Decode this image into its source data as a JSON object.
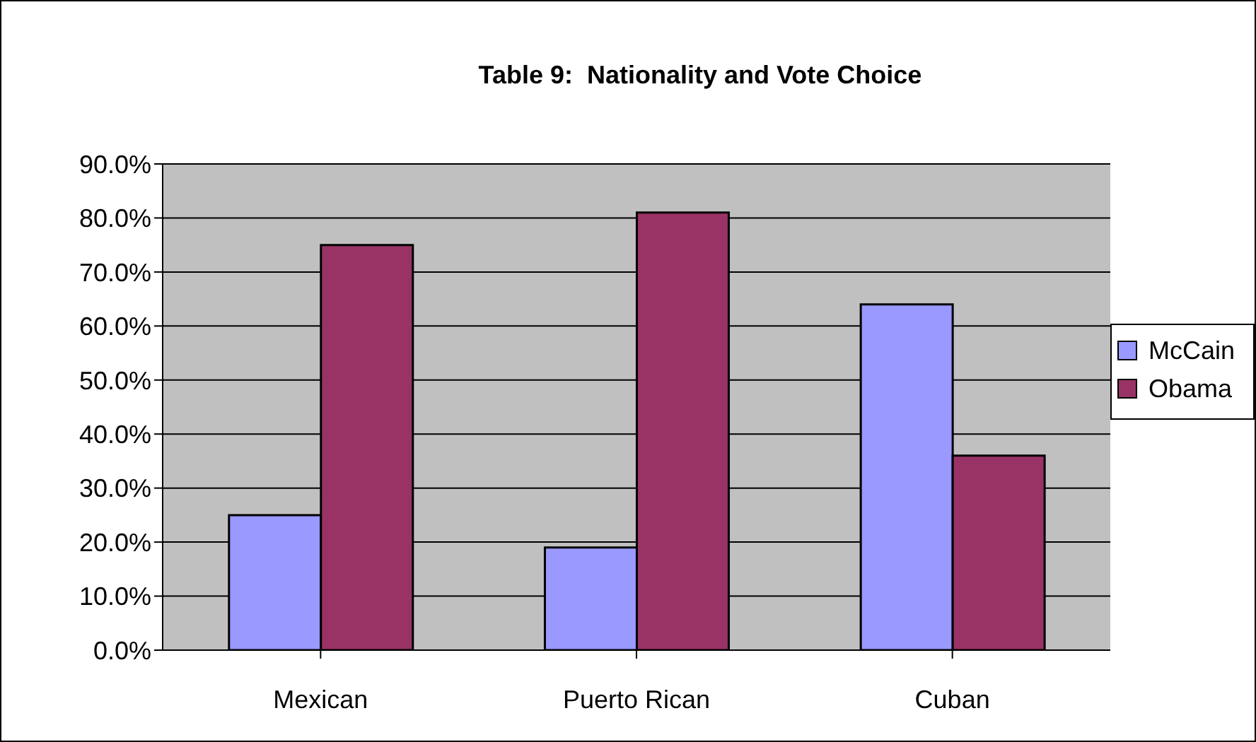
{
  "chart_data": {
    "type": "bar",
    "title": "Table 9:  Nationality and Vote Choice",
    "categories": [
      "Mexican",
      "Puerto Rican",
      "Cuban"
    ],
    "series": [
      {
        "name": "McCain",
        "color": "#9999ff",
        "values": [
          25,
          19,
          64
        ]
      },
      {
        "name": "Obama",
        "color": "#993366",
        "values": [
          75,
          81,
          36
        ]
      }
    ],
    "ylim": [
      0,
      90
    ],
    "yticks": [
      {
        "value": 0,
        "label": "0.0%"
      },
      {
        "value": 10,
        "label": "10.0%"
      },
      {
        "value": 20,
        "label": "20.0%"
      },
      {
        "value": 30,
        "label": "30.0%"
      },
      {
        "value": 40,
        "label": "40.0%"
      },
      {
        "value": 50,
        "label": "50.0%"
      },
      {
        "value": 60,
        "label": "60.0%"
      },
      {
        "value": 70,
        "label": "70.0%"
      },
      {
        "value": 80,
        "label": "80.0%"
      },
      {
        "value": 90,
        "label": "90.0%"
      }
    ],
    "grid": "y",
    "legend": "right"
  }
}
